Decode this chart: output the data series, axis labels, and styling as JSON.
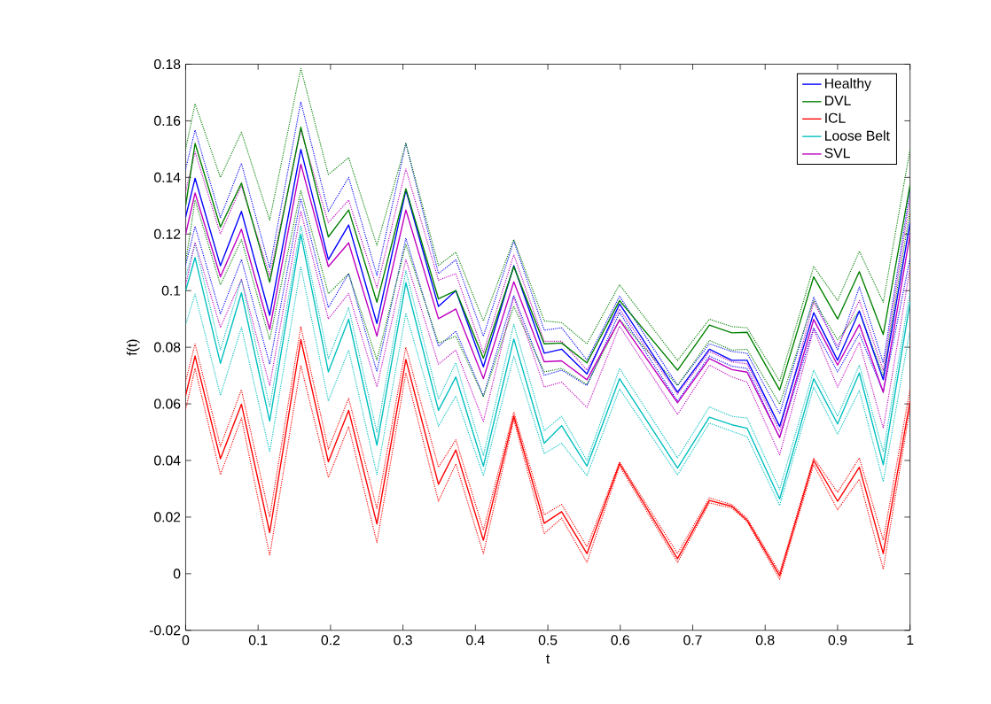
{
  "chart_data": {
    "type": "line",
    "xlabel": "t",
    "ylabel": "f(t)",
    "x": [
      0,
      0.013,
      0.048,
      0.077,
      0.116,
      0.159,
      0.197,
      0.225,
      0.264,
      0.304,
      0.349,
      0.373,
      0.411,
      0.453,
      0.495,
      0.519,
      0.554,
      0.599,
      0.679,
      0.723,
      0.754,
      0.775,
      0.82,
      0.867,
      0.9,
      0.93,
      0.963,
      1.0
    ],
    "xlim": [
      0,
      1
    ],
    "ylim": [
      -0.02,
      0.18
    ],
    "xticks": [
      0,
      0.1,
      0.2,
      0.3,
      0.4,
      0.5,
      0.6,
      0.7,
      0.8,
      0.9,
      1
    ],
    "yticks": [
      -0.02,
      0,
      0.02,
      0.04,
      0.06,
      0.08,
      0.1,
      0.12,
      0.14,
      0.16,
      0.18
    ],
    "legend": "top right",
    "series": [
      {
        "name": "Healthy",
        "color": "#0000ff",
        "line_style": "solid",
        "values": [
          0.126,
          0.1397,
          0.1088,
          0.128,
          0.0913,
          0.1499,
          0.111,
          0.1232,
          0.0884,
          0.1355,
          0.0944,
          0.1,
          0.0731,
          0.1088,
          0.0779,
          0.0793,
          0.0706,
          0.0953,
          0.0641,
          0.0793,
          0.0754,
          0.0754,
          0.052,
          0.0922,
          0.0754,
          0.0928,
          0.0685,
          0.1241
        ]
      },
      {
        "color": "#0000ff",
        "line_style": "dotted",
        "values": [
          0.143,
          0.1567,
          0.1258,
          0.145,
          0.108,
          0.1667,
          0.128,
          0.14,
          0.1054,
          0.152,
          0.106,
          0.1109,
          0.0839,
          0.1175,
          0.086,
          0.0869,
          0.0755,
          0.098,
          0.0665,
          0.0812,
          0.0785,
          0.0779,
          0.0565,
          0.0977,
          0.079,
          0.1013,
          0.0745,
          0.1355
        ]
      },
      {
        "color": "#0000ff",
        "line_style": "dotted",
        "values": [
          0.109,
          0.1227,
          0.0918,
          0.111,
          0.074,
          0.1325,
          0.094,
          0.106,
          0.0714,
          0.1185,
          0.0803,
          0.0857,
          0.0628,
          0.0983,
          0.0701,
          0.0719,
          0.0665,
          0.0923,
          0.061,
          0.0769,
          0.0733,
          0.0725,
          0.0481,
          0.0869,
          0.0713,
          0.0848,
          0.0641,
          0.1115
        ]
      },
      {
        "name": "DVL",
        "color": "#008000",
        "line_style": "solid",
        "values": [
          0.13,
          0.152,
          0.1225,
          0.138,
          0.103,
          0.1577,
          0.119,
          0.1285,
          0.0959,
          0.136,
          0.0971,
          0.1,
          0.0761,
          0.1085,
          0.0812,
          0.0815,
          0.0745,
          0.0965,
          0.0719,
          0.0878,
          0.0851,
          0.0853,
          0.0649,
          0.1049,
          0.09,
          0.1067,
          0.0845,
          0.1373
        ]
      },
      {
        "color": "#008000",
        "line_style": "dotted",
        "values": [
          0.15,
          0.166,
          0.14,
          0.156,
          0.125,
          0.1785,
          0.141,
          0.147,
          0.116,
          0.152,
          0.1089,
          0.1136,
          0.0893,
          0.1181,
          0.0893,
          0.0887,
          0.0812,
          0.1021,
          0.0753,
          0.0899,
          0.0873,
          0.0869,
          0.068,
          0.1085,
          0.0965,
          0.1139,
          0.0959,
          0.1499
        ]
      },
      {
        "color": "#008000",
        "line_style": "dotted",
        "values": [
          0.11,
          0.132,
          0.102,
          0.118,
          0.0827,
          0.1355,
          0.0989,
          0.106,
          0.0755,
          0.1163,
          0.0815,
          0.0839,
          0.0625,
          0.0944,
          0.0713,
          0.0725,
          0.0668,
          0.0898,
          0.0665,
          0.0824,
          0.079,
          0.0793,
          0.0599,
          0.0965,
          0.0826,
          0.0928,
          0.07,
          0.1283
        ]
      },
      {
        "name": "ICL",
        "color": "#ff0000",
        "line_style": "solid",
        "values": [
          0.063,
          0.0769,
          0.0406,
          0.0599,
          0.0145,
          0.0827,
          0.0395,
          0.0577,
          0.0176,
          0.0757,
          0.0316,
          0.0437,
          0.0118,
          0.0557,
          0.0178,
          0.0219,
          0.0071,
          0.0389,
          0.0053,
          0.0259,
          0.0238,
          0.0189,
          -0.0007,
          0.04,
          0.0256,
          0.0376,
          0.0071,
          0.061
        ]
      },
      {
        "color": "#ff0000",
        "line_style": "dotted",
        "values": [
          0.068,
          0.0812,
          0.045,
          0.065,
          0.02,
          0.0873,
          0.044,
          0.062,
          0.023,
          0.08,
          0.0376,
          0.0473,
          0.0154,
          0.0572,
          0.0208,
          0.0245,
          0.0095,
          0.0395,
          0.0071,
          0.0268,
          0.0244,
          0.0196,
          0.0004,
          0.0409,
          0.0287,
          0.0409,
          0.0118,
          0.0653
        ]
      },
      {
        "color": "#ff0000",
        "line_style": "dotted",
        "values": [
          0.058,
          0.0725,
          0.035,
          0.055,
          0.0064,
          0.0736,
          0.034,
          0.052,
          0.011,
          0.071,
          0.0256,
          0.0388,
          0.0071,
          0.0544,
          0.0142,
          0.0196,
          0.004,
          0.038,
          0.004,
          0.025,
          0.0232,
          0.0184,
          -0.002,
          0.0385,
          0.0226,
          0.0334,
          0.0016,
          0.0586
        ]
      },
      {
        "name": "Loose Belt",
        "color": "#00bfbf",
        "line_style": "solid",
        "values": [
          0.1,
          0.1117,
          0.0743,
          0.0992,
          0.0539,
          0.1199,
          0.0713,
          0.0899,
          0.0454,
          0.1028,
          0.0577,
          0.0695,
          0.038,
          0.0829,
          0.0461,
          0.0523,
          0.038,
          0.0689,
          0.0373,
          0.0553,
          0.0526,
          0.0514,
          0.0264,
          0.0689,
          0.0529,
          0.0709,
          0.0385,
          0.0959
        ]
      },
      {
        "color": "#00bfbf",
        "line_style": "dotted",
        "values": [
          0.105,
          0.1166,
          0.079,
          0.104,
          0.0589,
          0.1229,
          0.076,
          0.094,
          0.05,
          0.107,
          0.0617,
          0.0745,
          0.0418,
          0.0881,
          0.0505,
          0.0556,
          0.04,
          0.0725,
          0.0409,
          0.0589,
          0.0556,
          0.055,
          0.0298,
          0.0719,
          0.0556,
          0.0737,
          0.043,
          0.0995
        ]
      },
      {
        "color": "#00bfbf",
        "line_style": "dotted",
        "values": [
          0.088,
          0.0988,
          0.063,
          0.087,
          0.043,
          0.1085,
          0.061,
          0.079,
          0.035,
          0.092,
          0.0521,
          0.0628,
          0.0346,
          0.0769,
          0.0424,
          0.0461,
          0.0346,
          0.0653,
          0.0349,
          0.0532,
          0.0503,
          0.0484,
          0.0241,
          0.0659,
          0.0493,
          0.0647,
          0.0325,
          0.0863
        ]
      },
      {
        "name": "SVL",
        "color": "#bf00bf",
        "line_style": "solid",
        "values": [
          0.12,
          0.1345,
          0.1049,
          0.1217,
          0.0863,
          0.1447,
          0.1085,
          0.1169,
          0.0839,
          0.1285,
          0.0901,
          0.0935,
          0.0689,
          0.1031,
          0.0749,
          0.0752,
          0.0685,
          0.0896,
          0.0604,
          0.076,
          0.0721,
          0.0712,
          0.0481,
          0.0898,
          0.0737,
          0.088,
          0.0641,
          0.1199
        ]
      },
      {
        "color": "#bf00bf",
        "line_style": "dotted",
        "values": [
          0.135,
          0.149,
          0.12,
          0.137,
          0.1053,
          0.1566,
          0.124,
          0.132,
          0.101,
          0.143,
          0.1037,
          0.106,
          0.0781,
          0.1127,
          0.0821,
          0.0821,
          0.0719,
          0.0935,
          0.0634,
          0.0785,
          0.0748,
          0.0742,
          0.0503,
          0.0959,
          0.0803,
          0.0965,
          0.0719,
          0.1325
        ]
      },
      {
        "color": "#bf00bf",
        "line_style": "dotted",
        "values": [
          0.102,
          0.117,
          0.087,
          0.104,
          0.0664,
          0.128,
          0.09,
          0.099,
          0.066,
          0.111,
          0.074,
          0.079,
          0.0538,
          0.0977,
          0.0659,
          0.0677,
          0.0587,
          0.0875,
          0.0562,
          0.0737,
          0.0695,
          0.0677,
          0.042,
          0.0863,
          0.0659,
          0.0817,
          0.0514,
          0.1079
        ]
      }
    ]
  }
}
